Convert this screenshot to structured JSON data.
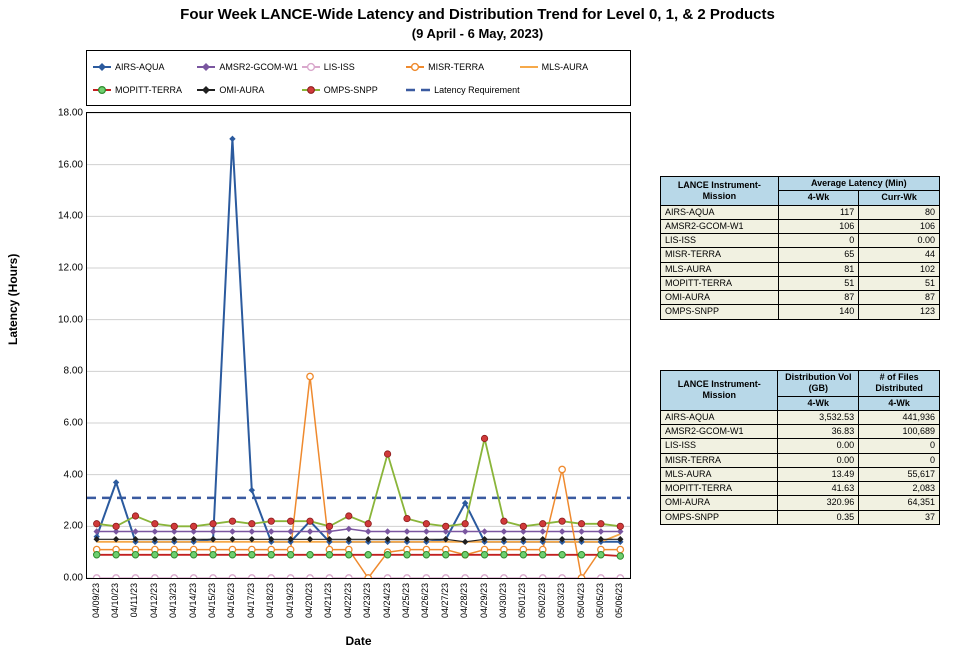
{
  "title": "Four Week LANCE-Wide Latency and Distribution Trend for Level 0, 1, & 2 Products",
  "subtitle": "(9  April    -  6 May,  2023)",
  "axes": {
    "xlabel": "Date",
    "ylabel": "Latency (Hours)",
    "ylim": [
      0,
      18
    ],
    "ytick_step": 2,
    "y_decimals": 2,
    "grid_color": "#d0d0d0",
    "border_color": "#000000",
    "background_color": "#ffffff",
    "dates": [
      "04/09/23",
      "04/10/23",
      "04/11/23",
      "04/12/23",
      "04/13/23",
      "04/14/23",
      "04/15/23",
      "04/16/23",
      "04/17/23",
      "04/18/23",
      "04/19/23",
      "04/20/23",
      "04/21/23",
      "04/22/23",
      "04/23/23",
      "04/24/23",
      "04/25/23",
      "04/26/23",
      "04/27/23",
      "04/28/23",
      "04/29/23",
      "04/30/23",
      "05/01/23",
      "05/02/23",
      "05/03/23",
      "05/04/23",
      "05/05/23",
      "05/06/23"
    ]
  },
  "latency_requirement": {
    "label": "Latency Requirement",
    "value": 3.1,
    "color": "#3a5aa0",
    "width": 2.5,
    "dash": "9,6"
  },
  "legend_layout": {
    "cols": 5,
    "rows": 2
  },
  "series": [
    {
      "key": "airs",
      "label": "AIRS-AQUA",
      "color": "#2b5a9e",
      "marker": "diamond",
      "width": 2,
      "y": [
        1.6,
        3.7,
        1.4,
        1.4,
        1.4,
        1.4,
        1.5,
        17.0,
        3.4,
        1.4,
        1.4,
        2.2,
        1.4,
        1.4,
        1.4,
        1.4,
        1.4,
        1.4,
        1.5,
        2.9,
        1.4,
        1.4,
        1.4,
        1.4,
        1.4,
        1.4,
        1.4,
        1.4
      ]
    },
    {
      "key": "amsr2",
      "label": "AMSR2-GCOM-W1",
      "color": "#7a56a0",
      "marker": "diamond",
      "width": 1.5,
      "y": [
        1.8,
        1.8,
        1.8,
        1.8,
        1.8,
        1.8,
        1.8,
        1.8,
        1.8,
        1.8,
        1.8,
        1.8,
        1.8,
        1.9,
        1.8,
        1.8,
        1.8,
        1.8,
        1.8,
        1.8,
        1.8,
        1.8,
        1.8,
        1.8,
        1.8,
        1.8,
        1.8,
        1.8
      ]
    },
    {
      "key": "lis",
      "label": "LIS-ISS",
      "color": "#d9a8cc",
      "marker": "circle-open",
      "width": 1.5,
      "y": [
        0,
        0,
        0,
        0,
        0,
        0,
        0,
        0,
        0,
        0,
        0,
        0,
        0,
        0,
        0,
        0,
        0,
        0,
        0,
        0,
        0,
        0,
        0,
        0,
        0,
        0,
        0,
        0
      ]
    },
    {
      "key": "misr",
      "label": "MISR-TERRA",
      "color": "#ef8a2e",
      "marker": "circle-open",
      "width": 1.5,
      "y": [
        1.1,
        1.1,
        1.1,
        1.1,
        1.1,
        1.1,
        1.1,
        1.1,
        1.1,
        1.1,
        1.1,
        7.8,
        1.1,
        1.1,
        0.0,
        1.0,
        1.1,
        1.1,
        1.1,
        0.9,
        1.1,
        1.1,
        1.1,
        1.1,
        4.2,
        0.0,
        1.1,
        1.1
      ]
    },
    {
      "key": "mls",
      "label": "MLS-AURA",
      "color": "#f6a94a",
      "marker": "none",
      "width": 1.8,
      "y": [
        1.4,
        1.4,
        1.4,
        1.4,
        1.4,
        1.4,
        1.4,
        1.4,
        1.4,
        1.4,
        1.4,
        1.4,
        1.4,
        1.4,
        1.4,
        1.4,
        1.4,
        1.4,
        1.4,
        1.4,
        1.4,
        1.4,
        1.4,
        1.4,
        1.4,
        1.4,
        1.4,
        1.7
      ]
    },
    {
      "key": "mopitt",
      "label": "MOPITT-TERRA",
      "color": "#c22020",
      "marker": "circle-open-green",
      "width": 1.8,
      "y": [
        0.9,
        0.9,
        0.9,
        0.9,
        0.9,
        0.9,
        0.9,
        0.9,
        0.9,
        0.9,
        0.9,
        0.9,
        0.9,
        0.9,
        0.9,
        0.9,
        0.9,
        0.9,
        0.9,
        0.9,
        0.9,
        0.9,
        0.9,
        0.9,
        0.9,
        0.9,
        0.9,
        0.85
      ]
    },
    {
      "key": "omi",
      "label": "OMI-AURA",
      "color": "#202020",
      "marker": "diamond",
      "width": 1.2,
      "y": [
        1.5,
        1.5,
        1.5,
        1.5,
        1.5,
        1.5,
        1.5,
        1.5,
        1.5,
        1.5,
        1.5,
        1.5,
        1.5,
        1.5,
        1.5,
        1.5,
        1.5,
        1.5,
        1.5,
        1.4,
        1.5,
        1.5,
        1.5,
        1.5,
        1.5,
        1.5,
        1.5,
        1.5
      ]
    },
    {
      "key": "omps",
      "label": "OMPS-SNPP",
      "color": "#8ab53a",
      "marker": "circle-red",
      "width": 1.8,
      "y": [
        2.1,
        2.0,
        2.4,
        2.1,
        2.0,
        2.0,
        2.1,
        2.2,
        2.1,
        2.2,
        2.2,
        2.2,
        2.0,
        2.4,
        2.1,
        4.8,
        2.3,
        2.1,
        2.0,
        2.1,
        5.4,
        2.2,
        2.0,
        2.1,
        2.2,
        2.1,
        2.1,
        2.0
      ]
    }
  ],
  "marker_radius": 3.2,
  "table1": {
    "h1": "LANCE Instrument-Mission",
    "h2": "Average Latency (Min)",
    "sub1": "4-Wk",
    "sub2": "Curr-Wk",
    "rows": [
      [
        "AIRS-AQUA",
        "117",
        "80"
      ],
      [
        "AMSR2-GCOM-W1",
        "106",
        "106"
      ],
      [
        "LIS-ISS",
        "0",
        "0.00"
      ],
      [
        "MISR-TERRA",
        "65",
        "44"
      ],
      [
        "MLS-AURA",
        "81",
        "102"
      ],
      [
        "MOPITT-TERRA",
        "51",
        "51"
      ],
      [
        "OMI-AURA",
        "87",
        "87"
      ],
      [
        "OMPS-SNPP",
        "140",
        "123"
      ]
    ]
  },
  "table2": {
    "h1": "LANCE Instrument-Mission",
    "h2": "Distribution Vol (GB)",
    "h3": "# of Files Distributed",
    "sub": "4-Wk",
    "rows": [
      [
        "AIRS-AQUA",
        "3,532.53",
        "441,936"
      ],
      [
        "AMSR2-GCOM-W1",
        "36.83",
        "100,689"
      ],
      [
        "LIS-ISS",
        "0.00",
        "0"
      ],
      [
        "MISR-TERRA",
        "0.00",
        "0"
      ],
      [
        "MLS-AURA",
        "13.49",
        "55,617"
      ],
      [
        "MOPITT-TERRA",
        "41.63",
        "2,083"
      ],
      [
        "OMI-AURA",
        "320.96",
        "64,351"
      ],
      [
        "OMPS-SNPP",
        "0.35",
        "37"
      ]
    ]
  }
}
